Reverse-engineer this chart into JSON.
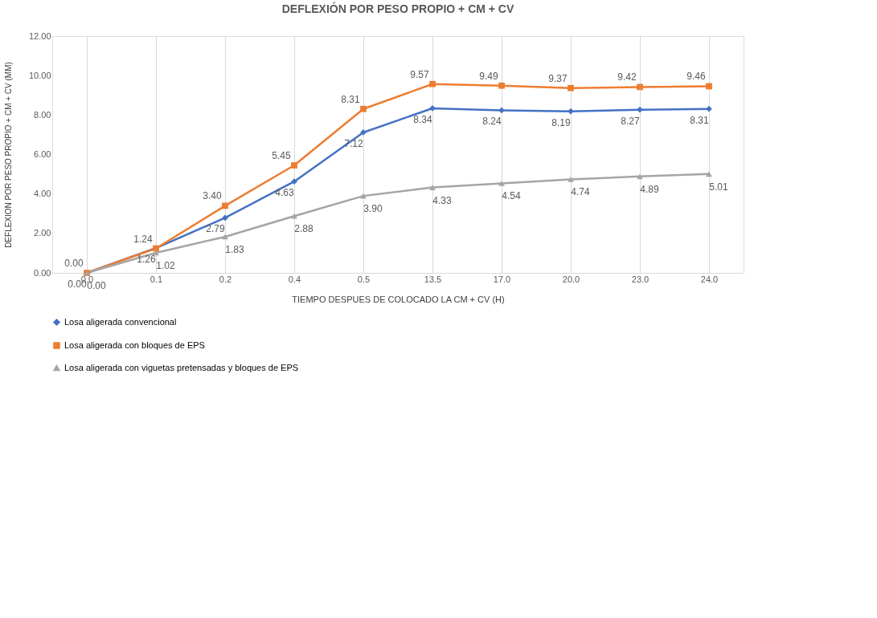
{
  "chart_data": {
    "type": "line",
    "title": "DEFLEXIÓN POR PESO PROPIO + CM + CV",
    "xlabel": "TIEMPO DESPUES DE COLOCADO LA CM + CV  (H)",
    "ylabel": "DEFLEXION POR PESO PROPIO + CM + CV  (MM)",
    "categories": [
      "0.0",
      "0.1",
      "0.2",
      "0.4",
      "0.5",
      "13.5",
      "17.0",
      "20.0",
      "23.0",
      "24.0"
    ],
    "series": [
      {
        "name": "Losa aligerada convencional",
        "color": "#4472c4",
        "marker": "diamond",
        "values": [
          0.0,
          1.26,
          2.79,
          4.63,
          7.12,
          8.34,
          8.24,
          8.19,
          8.27,
          8.31
        ],
        "value_labels": [
          "0.00",
          "1.26",
          "2.79",
          "4.63",
          "7.12",
          "8.34",
          "8.24",
          "8.19",
          "8.27",
          "8.31"
        ]
      },
      {
        "name": "Losa aligerada con bloques de EPS",
        "color": "#ed7d31",
        "marker": "square",
        "values": [
          0.0,
          1.24,
          3.4,
          5.45,
          8.31,
          9.57,
          9.49,
          9.37,
          9.42,
          9.46
        ],
        "value_labels": [
          "0.00",
          "1.24",
          "3.40",
          "5.45",
          "8.31",
          "9.57",
          "9.49",
          "9.37",
          "9.42",
          "9.46"
        ]
      },
      {
        "name": "Losa aligerada con viguetas pretensadas y bloques de EPS",
        "color": "#a5a5a5",
        "marker": "triangle",
        "values": [
          0.0,
          1.02,
          1.83,
          2.88,
          3.9,
          4.33,
          4.54,
          4.74,
          4.89,
          5.01
        ],
        "value_labels": [
          "0.00",
          "1.02",
          "1.83",
          "2.88",
          "3.90",
          "4.33",
          "4.54",
          "4.74",
          "4.89",
          "5.01"
        ]
      }
    ],
    "ylim": [
      0,
      12
    ],
    "yticks": [
      {
        "value": 0,
        "label": "0.00"
      },
      {
        "value": 2,
        "label": "2.00"
      },
      {
        "value": 4,
        "label": "4.00"
      },
      {
        "value": 6,
        "label": "6.00"
      },
      {
        "value": 8,
        "label": "8.00"
      },
      {
        "value": 10,
        "label": "10.00"
      },
      {
        "value": 12,
        "label": "12.00"
      }
    ],
    "grid": "x",
    "legend": "bottom left",
    "line_style": "solid"
  }
}
